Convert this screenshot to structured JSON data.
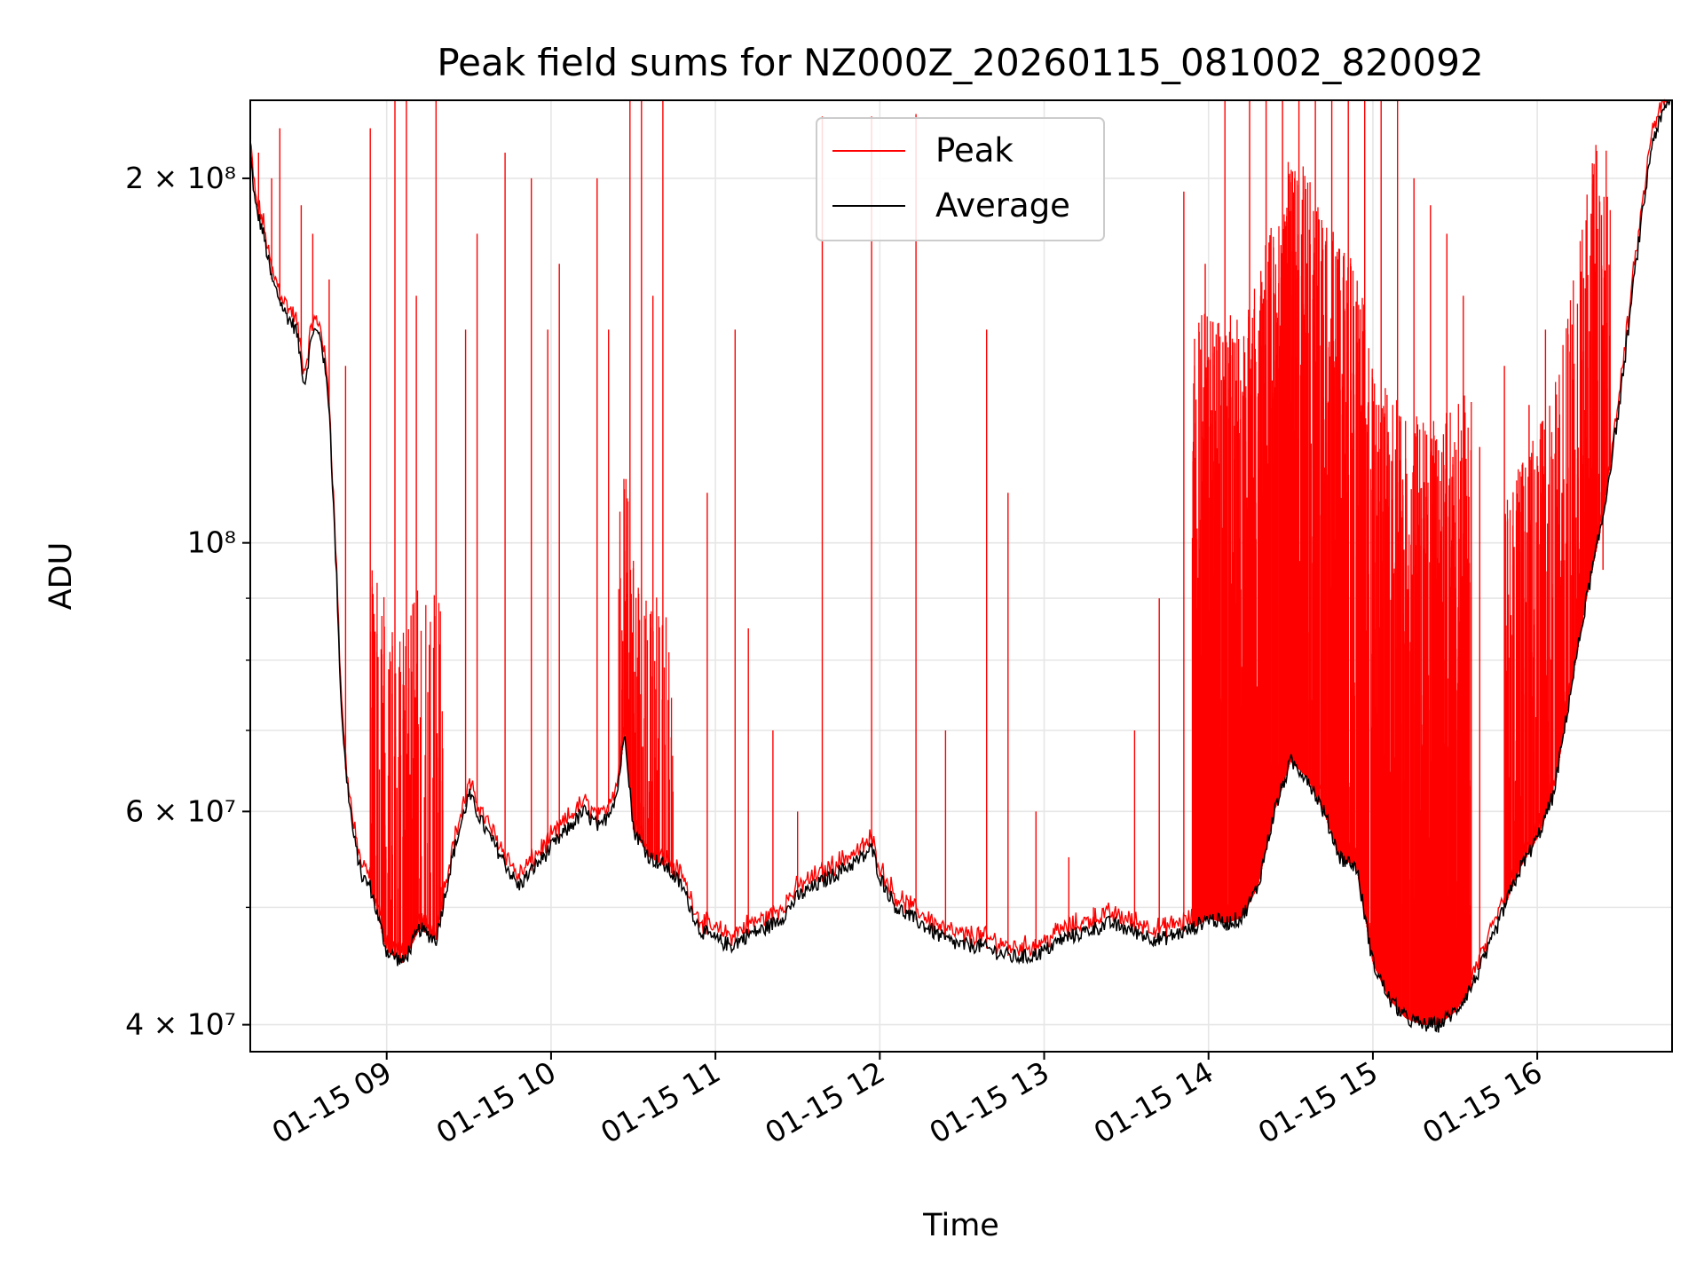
{
  "chart_data": {
    "type": "line",
    "title": "Peak field sums for NZ000Z_20260115_081002_820092",
    "xlabel": "Time",
    "ylabel": "ADU",
    "yscale": "log",
    "ylim": [
      38000000,
      232000000
    ],
    "xlim_hours": [
      8.17,
      16.82
    ],
    "grid": true,
    "legend_position": "upper center",
    "x_ticks": [
      {
        "label": "01-15 09",
        "hour": 9
      },
      {
        "label": "01-15 10",
        "hour": 10
      },
      {
        "label": "01-15 11",
        "hour": 11
      },
      {
        "label": "01-15 12",
        "hour": 12
      },
      {
        "label": "01-15 13",
        "hour": 13
      },
      {
        "label": "01-15 14",
        "hour": 14
      },
      {
        "label": "01-15 15",
        "hour": 15
      },
      {
        "label": "01-15 16",
        "hour": 16
      }
    ],
    "y_ticks": [
      {
        "label": "2 × 10⁸",
        "value": 200000000
      },
      {
        "label": "10⁸",
        "value": 100000000
      },
      {
        "label": "6 × 10⁷",
        "value": 60000000
      },
      {
        "label": "4 × 10⁷",
        "value": 40000000
      }
    ],
    "y_minor_ticks": [
      50000000,
      70000000,
      80000000,
      90000000
    ],
    "series": [
      {
        "name": "Peak",
        "color": "#ff0000",
        "description": "Per-frame peak field sum; tracks the average baseline with frequent upward spikes",
        "spike_hours": [
          8.22,
          8.3,
          8.35,
          8.48,
          8.55,
          8.65,
          8.75,
          8.9,
          9.05,
          9.12,
          9.18,
          9.3,
          9.48,
          9.55,
          9.72,
          9.88,
          9.98,
          10.05,
          10.28,
          10.35,
          10.48,
          10.55,
          10.62,
          10.68,
          10.95,
          11.12,
          11.2,
          11.35,
          11.5,
          11.65,
          11.95,
          12.22,
          12.4,
          12.65,
          12.78,
          12.95,
          13.15,
          13.3,
          13.55,
          13.7,
          13.85,
          13.98,
          14.1,
          14.25,
          14.35,
          14.45,
          14.55,
          14.65,
          14.75,
          14.85,
          14.95,
          15.05,
          15.15,
          15.25,
          15.35,
          15.45,
          15.55,
          15.65,
          15.8,
          15.95,
          16.05,
          16.15,
          16.25,
          16.4
        ],
        "spike_values": [
          210000000,
          200000000,
          220000000,
          190000000,
          180000000,
          165000000,
          140000000,
          220000000,
          232000000,
          232000000,
          160000000,
          232000000,
          150000000,
          180000000,
          210000000,
          200000000,
          150000000,
          170000000,
          200000000,
          150000000,
          232000000,
          232000000,
          160000000,
          232000000,
          110000000,
          150000000,
          85000000,
          70000000,
          60000000,
          225000000,
          225000000,
          226000000,
          70000000,
          150000000,
          110000000,
          60000000,
          55000000,
          50000000,
          70000000,
          90000000,
          195000000,
          170000000,
          232000000,
          232000000,
          232000000,
          232000000,
          232000000,
          232000000,
          232000000,
          232000000,
          232000000,
          232000000,
          232000000,
          200000000,
          190000000,
          180000000,
          160000000,
          120000000,
          140000000,
          130000000,
          150000000,
          110000000,
          100000000,
          95000000
        ]
      },
      {
        "name": "Average",
        "color": "#000000",
        "description": "Per-frame average field sum",
        "x_hours": [
          8.17,
          8.2,
          8.25,
          8.3,
          8.38,
          8.45,
          8.5,
          8.55,
          8.6,
          8.65,
          8.7,
          8.72,
          8.75,
          8.8,
          8.85,
          8.9,
          9.0,
          9.1,
          9.2,
          9.3,
          9.4,
          9.5,
          9.6,
          9.7,
          9.8,
          9.9,
          10.0,
          10.1,
          10.2,
          10.3,
          10.4,
          10.45,
          10.5,
          10.6,
          10.7,
          10.8,
          10.9,
          11.0,
          11.1,
          11.2,
          11.3,
          11.4,
          11.5,
          11.6,
          11.7,
          11.8,
          11.9,
          11.95,
          12.0,
          12.1,
          12.2,
          12.3,
          12.4,
          12.5,
          12.6,
          12.7,
          12.8,
          12.9,
          13.0,
          13.1,
          13.2,
          13.3,
          13.4,
          13.5,
          13.6,
          13.7,
          13.8,
          13.9,
          14.0,
          14.1,
          14.2,
          14.3,
          14.4,
          14.5,
          14.6,
          14.7,
          14.8,
          14.9,
          15.0,
          15.1,
          15.2,
          15.3,
          15.4,
          15.5,
          15.6,
          15.7,
          15.8,
          15.9,
          16.0,
          16.1,
          16.2,
          16.3,
          16.4,
          16.5,
          16.6,
          16.7,
          16.8
        ],
        "values": [
          210000000,
          190000000,
          180000000,
          165000000,
          155000000,
          150000000,
          135000000,
          150000000,
          148000000,
          130000000,
          90000000,
          75000000,
          65000000,
          57000000,
          53000000,
          52000000,
          46000000,
          45000000,
          48000000,
          47000000,
          55000000,
          62000000,
          58000000,
          55000000,
          52000000,
          54000000,
          56000000,
          58000000,
          60000000,
          58000000,
          62000000,
          70000000,
          58000000,
          55000000,
          54000000,
          52000000,
          48000000,
          47000000,
          46500000,
          47500000,
          48000000,
          49000000,
          51000000,
          52000000,
          53000000,
          54000000,
          55000000,
          56000000,
          53000000,
          50000000,
          49000000,
          48000000,
          47000000,
          46500000,
          46500000,
          46000000,
          45500000,
          45500000,
          46000000,
          47000000,
          47500000,
          48000000,
          48500000,
          48000000,
          47500000,
          47000000,
          47500000,
          48000000,
          49000000,
          48500000,
          49000000,
          52000000,
          60000000,
          66000000,
          64000000,
          60000000,
          55000000,
          54000000,
          45000000,
          42000000,
          40500000,
          40000000,
          40000000,
          41000000,
          43000000,
          46000000,
          50000000,
          54000000,
          57000000,
          62000000,
          75000000,
          90000000,
          105000000,
          130000000,
          170000000,
          215000000,
          232000000
        ]
      }
    ]
  }
}
